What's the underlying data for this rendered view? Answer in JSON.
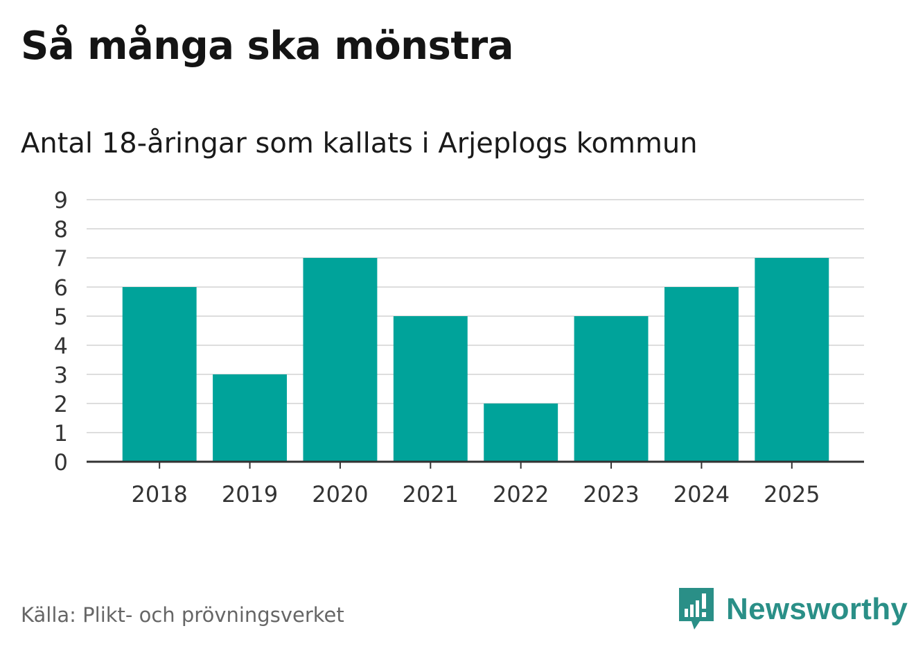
{
  "header": {
    "title": "Så många ska mönstra",
    "subtitle": "Antal 18-åringar som kallats i Arjeplogs kommun"
  },
  "footer": {
    "source": "Källa: Plikt- och prövningsverket",
    "brand": "Newsworthy"
  },
  "colors": {
    "bar": "#00a39a",
    "grid": "#dddddd",
    "axis": "#333333",
    "brand": "#2a8f87"
  },
  "chart_data": {
    "type": "bar",
    "title": "Så många ska mönstra",
    "subtitle": "Antal 18-åringar som kallats i Arjeplogs kommun",
    "xlabel": "",
    "ylabel": "",
    "categories": [
      "2018",
      "2019",
      "2020",
      "2021",
      "2022",
      "2023",
      "2024",
      "2025"
    ],
    "values": [
      6,
      3,
      7,
      5,
      2,
      5,
      6,
      7
    ],
    "ylim": [
      0,
      9
    ],
    "yticks": [
      0,
      1,
      2,
      3,
      4,
      5,
      6,
      7,
      8,
      9
    ],
    "grid": true,
    "legend": "none"
  }
}
